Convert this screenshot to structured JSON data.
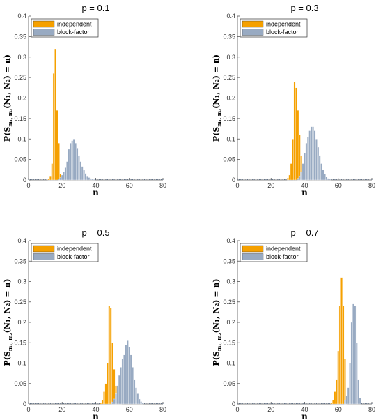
{
  "chart_data": [
    {
      "type": "bar",
      "title": "p = 0.1",
      "xlabel": "n",
      "ylabel": {
        "main": "P(S",
        "sub": "m₁, m₂",
        "rest": "(N₁, N₂) = n)"
      },
      "xlim": [
        0,
        80
      ],
      "ylim": [
        0,
        0.4
      ],
      "xticks": [
        "0",
        "20",
        "40",
        "60",
        "80"
      ],
      "yticks": [
        "0",
        "0.05",
        "0.1",
        "0.15",
        "0.2",
        "0.25",
        "0.3",
        "0.35",
        "0.4"
      ],
      "legend_position": "top-left",
      "series": [
        {
          "name": "independent",
          "color": "#f5a000",
          "x": [
            12,
            13,
            14,
            15,
            16,
            17,
            18,
            19,
            20
          ],
          "values": [
            0.002,
            0.01,
            0.04,
            0.26,
            0.32,
            0.17,
            0.09,
            0.015,
            0.002
          ]
        },
        {
          "name": "block-factor",
          "color": "#98aac2",
          "x": [
            18,
            19,
            20,
            21,
            22,
            23,
            24,
            25,
            26,
            27,
            28,
            29,
            30,
            31,
            32,
            33,
            34,
            35,
            36,
            37,
            38,
            39
          ],
          "values": [
            0.003,
            0.006,
            0.012,
            0.02,
            0.03,
            0.045,
            0.075,
            0.09,
            0.096,
            0.1,
            0.09,
            0.078,
            0.06,
            0.045,
            0.033,
            0.024,
            0.016,
            0.01,
            0.006,
            0.004,
            0.002,
            0.001
          ]
        }
      ]
    },
    {
      "type": "bar",
      "title": "p = 0.3",
      "xlabel": "n",
      "ylabel": {
        "main": "P(S",
        "sub": "m₁, m₂",
        "rest": "(N₁, N₂) = n)"
      },
      "xlim": [
        0,
        80
      ],
      "ylim": [
        0,
        0.4
      ],
      "xticks": [
        "0",
        "20",
        "40",
        "60",
        "80"
      ],
      "yticks": [
        "0",
        "0.05",
        "0.1",
        "0.15",
        "0.2",
        "0.25",
        "0.3",
        "0.35",
        "0.4"
      ],
      "legend_position": "top-left",
      "series": [
        {
          "name": "independent",
          "color": "#f5a000",
          "x": [
            30,
            31,
            32,
            33,
            34,
            35,
            36,
            37,
            38,
            39,
            40
          ],
          "values": [
            0.005,
            0.012,
            0.04,
            0.1,
            0.24,
            0.225,
            0.17,
            0.11,
            0.06,
            0.025,
            0.008
          ]
        },
        {
          "name": "block-factor",
          "color": "#98aac2",
          "x": [
            36,
            37,
            38,
            39,
            40,
            41,
            42,
            43,
            44,
            45,
            46,
            47,
            48,
            49,
            50,
            51,
            52,
            53,
            54,
            55
          ],
          "values": [
            0.004,
            0.01,
            0.02,
            0.04,
            0.065,
            0.09,
            0.105,
            0.12,
            0.13,
            0.13,
            0.12,
            0.1,
            0.08,
            0.06,
            0.04,
            0.025,
            0.015,
            0.008,
            0.004,
            0.002
          ]
        }
      ]
    },
    {
      "type": "bar",
      "title": "p = 0.5",
      "xlabel": "n",
      "ylabel": {
        "main": "P(S",
        "sub": "m₁, m₂",
        "rest": "(N₁, N₂) = n)"
      },
      "xlim": [
        0,
        80
      ],
      "ylim": [
        0,
        0.4
      ],
      "xticks": [
        "0",
        "20",
        "40",
        "60",
        "80"
      ],
      "yticks": [
        "0",
        "0.05",
        "0.1",
        "0.15",
        "0.2",
        "0.25",
        "0.3",
        "0.35",
        "0.4"
      ],
      "legend_position": "top-left",
      "series": [
        {
          "name": "independent",
          "color": "#f5a000",
          "x": [
            43,
            44,
            45,
            46,
            47,
            48,
            49,
            50,
            51,
            52,
            53,
            54,
            55
          ],
          "values": [
            0.003,
            0.01,
            0.03,
            0.05,
            0.1,
            0.24,
            0.235,
            0.15,
            0.085,
            0.045,
            0.02,
            0.008,
            0.003
          ]
        },
        {
          "name": "block-factor",
          "color": "#98aac2",
          "x": [
            50,
            51,
            52,
            53,
            54,
            55,
            56,
            57,
            58,
            59,
            60,
            61,
            62,
            63,
            64,
            65,
            66,
            67,
            68
          ],
          "values": [
            0.005,
            0.012,
            0.025,
            0.045,
            0.07,
            0.09,
            0.11,
            0.12,
            0.145,
            0.155,
            0.14,
            0.12,
            0.09,
            0.06,
            0.04,
            0.025,
            0.012,
            0.006,
            0.003
          ]
        }
      ]
    },
    {
      "type": "bar",
      "title": "p = 0.7",
      "xlabel": "n",
      "ylabel": {
        "main": "P(S",
        "sub": "m₁, m₂",
        "rest": "(N₁, N₂) = n)"
      },
      "xlim": [
        0,
        80
      ],
      "ylim": [
        0,
        0.4
      ],
      "xticks": [
        "0",
        "20",
        "40",
        "60",
        "80"
      ],
      "yticks": [
        "0",
        "0.05",
        "0.1",
        "0.15",
        "0.2",
        "0.25",
        "0.3",
        "0.35",
        "0.4"
      ],
      "legend_position": "top-left",
      "series": [
        {
          "name": "independent",
          "color": "#f5a000",
          "x": [
            56,
            57,
            58,
            59,
            60,
            61,
            62,
            63,
            64,
            65
          ],
          "values": [
            0.003,
            0.01,
            0.03,
            0.06,
            0.13,
            0.24,
            0.31,
            0.24,
            0.11,
            0.02
          ]
        },
        {
          "name": "block-factor",
          "color": "#98aac2",
          "x": [
            64,
            65,
            66,
            67,
            68,
            69,
            70,
            71,
            72,
            73
          ],
          "values": [
            0.01,
            0.02,
            0.04,
            0.1,
            0.2,
            0.245,
            0.24,
            0.15,
            0.06,
            0.015
          ]
        }
      ]
    }
  ]
}
